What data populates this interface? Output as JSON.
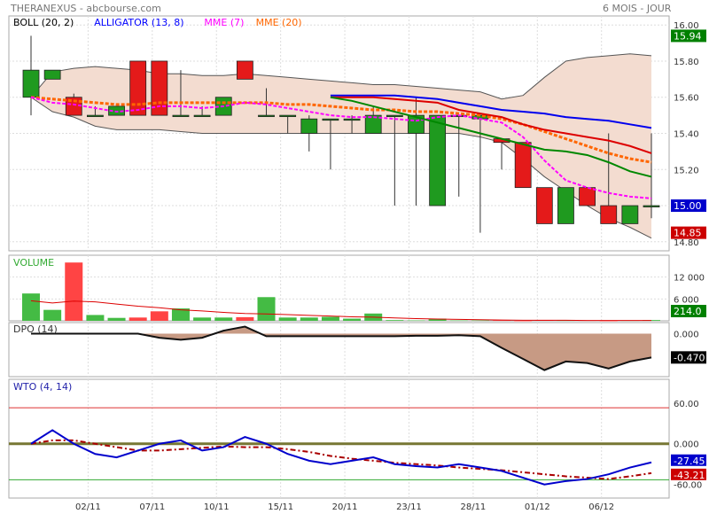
{
  "header": {
    "title": "THERANEXUS - abcbourse.com",
    "period": "6 MOIS - JOUR"
  },
  "panels": {
    "price": {
      "legend": [
        {
          "label": "BOLL (20, 2)",
          "color": "#000000"
        },
        {
          "label": "ALLIGATOR (13, 8)",
          "color": "#0000ff"
        },
        {
          "label": "MME (7)",
          "color": "#ff00ff"
        },
        {
          "label": "MME (20)",
          "color": "#ff6600"
        }
      ],
      "axis": [
        "16.00",
        "15.80",
        "15.60",
        "15.40",
        "15.20",
        "15.00",
        "14.80"
      ],
      "badges": [
        {
          "text": "15.94",
          "value": 15.94,
          "color": "#008000"
        },
        {
          "text": "15.00",
          "value": 15.0,
          "color": "#0000cc"
        },
        {
          "text": "14.85",
          "value": 14.85,
          "color": "#cc0000"
        }
      ]
    },
    "volume": {
      "label": "VOLUME",
      "axis": [
        "12 000",
        "6 000"
      ],
      "badge": "214.0",
      "badge_color": "#008000"
    },
    "dpo": {
      "label": "DPO (14)",
      "axis": [
        "0.000"
      ],
      "badge": "-0.470",
      "badge_color": "#000000"
    },
    "wto": {
      "label": "WTO (4, 14)",
      "axis": [
        "60.00",
        "0.000",
        "-60.00"
      ],
      "badges": [
        {
          "text": "-27.45",
          "value": -27.45,
          "color": "#0000cc"
        },
        {
          "text": "-43.21",
          "value": -43.21,
          "color": "#cc0000"
        }
      ]
    }
  },
  "chart_data": {
    "type": "candlestick",
    "x_labels": [
      "02/11",
      "07/11",
      "10/11",
      "15/11",
      "20/11",
      "23/11",
      "28/11",
      "01/12",
      "06/12"
    ],
    "x_label_index": [
      3,
      6,
      9,
      12,
      15,
      18,
      21,
      24,
      27
    ],
    "candles": [
      {
        "o": 15.6,
        "h": 15.94,
        "l": 15.5,
        "c": 15.75
      },
      {
        "o": 15.7,
        "h": 15.75,
        "l": 15.7,
        "c": 15.75
      },
      {
        "o": 15.6,
        "h": 15.62,
        "l": 15.5,
        "c": 15.5
      },
      {
        "o": 15.5,
        "h": 15.55,
        "l": 15.5,
        "c": 15.5
      },
      {
        "o": 15.5,
        "h": 15.55,
        "l": 15.5,
        "c": 15.55
      },
      {
        "o": 15.8,
        "h": 15.8,
        "l": 15.5,
        "c": 15.5
      },
      {
        "o": 15.8,
        "h": 15.8,
        "l": 15.5,
        "c": 15.5
      },
      {
        "o": 15.5,
        "h": 15.75,
        "l": 15.5,
        "c": 15.5
      },
      {
        "o": 15.5,
        "h": 15.55,
        "l": 15.5,
        "c": 15.5
      },
      {
        "o": 15.5,
        "h": 15.6,
        "l": 15.5,
        "c": 15.6
      },
      {
        "o": 15.8,
        "h": 15.8,
        "l": 15.7,
        "c": 15.7
      },
      {
        "o": 15.5,
        "h": 15.65,
        "l": 15.5,
        "c": 15.5
      },
      {
        "o": 15.5,
        "h": 15.5,
        "l": 15.4,
        "c": 15.5
      },
      {
        "o": 15.4,
        "h": 15.5,
        "l": 15.3,
        "c": 15.48
      },
      {
        "o": 15.48,
        "h": 15.48,
        "l": 15.2,
        "c": 15.48
      },
      {
        "o": 15.48,
        "h": 15.5,
        "l": 15.4,
        "c": 15.48
      },
      {
        "o": 15.4,
        "h": 15.55,
        "l": 15.4,
        "c": 15.5
      },
      {
        "o": 15.5,
        "h": 15.5,
        "l": 15.0,
        "c": 15.5
      },
      {
        "o": 15.4,
        "h": 15.6,
        "l": 15.0,
        "c": 15.5
      },
      {
        "o": 15.0,
        "h": 15.5,
        "l": 15.0,
        "c": 15.5
      },
      {
        "o": 15.5,
        "h": 15.5,
        "l": 15.05,
        "c": 15.5
      },
      {
        "o": 15.48,
        "h": 15.5,
        "l": 14.85,
        "c": 15.5
      },
      {
        "o": 15.37,
        "h": 15.37,
        "l": 15.2,
        "c": 15.35
      },
      {
        "o": 15.35,
        "h": 15.35,
        "l": 15.1,
        "c": 15.1
      },
      {
        "o": 15.1,
        "h": 15.1,
        "l": 14.9,
        "c": 14.9
      },
      {
        "o": 14.9,
        "h": 15.1,
        "l": 14.9,
        "c": 15.1
      },
      {
        "o": 15.1,
        "h": 15.1,
        "l": 15.0,
        "c": 15.0
      },
      {
        "o": 15.0,
        "h": 15.4,
        "l": 14.9,
        "c": 14.9
      },
      {
        "o": 14.9,
        "h": 15.0,
        "l": 14.9,
        "c": 15.0
      },
      {
        "o": 15.0,
        "h": 15.4,
        "l": 14.93,
        "c": 15.0
      }
    ],
    "boll_upper": [
      15.6,
      15.74,
      15.76,
      15.77,
      15.76,
      15.75,
      15.73,
      15.73,
      15.72,
      15.72,
      15.73,
      15.72,
      15.71,
      15.7,
      15.69,
      15.68,
      15.67,
      15.67,
      15.66,
      15.65,
      15.64,
      15.63,
      15.59,
      15.61,
      15.71,
      15.8,
      15.82,
      15.83,
      15.84,
      15.83
    ],
    "boll_lower": [
      15.6,
      15.52,
      15.49,
      15.44,
      15.42,
      15.42,
      15.42,
      15.41,
      15.4,
      15.4,
      15.4,
      15.4,
      15.4,
      15.4,
      15.4,
      15.4,
      15.4,
      15.4,
      15.4,
      15.4,
      15.4,
      15.38,
      15.35,
      15.26,
      15.16,
      15.08,
      15.0,
      14.93,
      14.88,
      14.82
    ],
    "alligator_blue": [
      null,
      null,
      null,
      null,
      null,
      null,
      null,
      null,
      null,
      null,
      null,
      null,
      null,
      null,
      15.61,
      15.61,
      15.61,
      15.61,
      15.6,
      15.59,
      15.57,
      15.55,
      15.53,
      15.52,
      15.51,
      15.49,
      15.48,
      15.47,
      15.45,
      15.43
    ],
    "alligator_red": [
      null,
      null,
      null,
      null,
      null,
      null,
      null,
      null,
      null,
      null,
      null,
      null,
      null,
      null,
      15.6,
      15.6,
      15.6,
      15.59,
      15.58,
      15.57,
      15.53,
      15.51,
      15.49,
      15.45,
      15.42,
      15.4,
      15.38,
      15.36,
      15.33,
      15.29
    ],
    "alligator_green": [
      null,
      null,
      null,
      null,
      null,
      null,
      null,
      null,
      null,
      null,
      null,
      null,
      null,
      null,
      15.6,
      15.58,
      15.55,
      15.52,
      15.49,
      15.46,
      15.43,
      15.4,
      15.37,
      15.34,
      15.31,
      15.3,
      15.28,
      15.24,
      15.19,
      15.16
    ],
    "mme7": [
      15.6,
      15.57,
      15.56,
      15.54,
      15.52,
      15.53,
      15.55,
      15.55,
      15.54,
      15.55,
      15.57,
      15.56,
      15.54,
      15.52,
      15.5,
      15.49,
      15.49,
      15.48,
      15.47,
      15.49,
      15.5,
      15.48,
      15.46,
      15.38,
      15.25,
      15.14,
      15.1,
      15.07,
      15.05,
      15.04
    ],
    "mme20": [
      15.6,
      15.59,
      15.58,
      15.57,
      15.56,
      15.56,
      15.57,
      15.57,
      15.57,
      15.57,
      15.57,
      15.57,
      15.56,
      15.56,
      15.55,
      15.54,
      15.53,
      15.53,
      15.52,
      15.52,
      15.51,
      15.5,
      15.48,
      15.45,
      15.41,
      15.37,
      15.33,
      15.29,
      15.26,
      15.24
    ],
    "volume": [
      7500,
      3000,
      16000,
      1600,
      800,
      900,
      2600,
      3400,
      900,
      900,
      1000,
      6500,
      900,
      900,
      1100,
      600,
      2000,
      200,
      100,
      600,
      100,
      100,
      100,
      0,
      200,
      100,
      100,
      0,
      100,
      214
    ],
    "volume_ma": [
      5500,
      4900,
      5400,
      5200,
      4600,
      4000,
      3600,
      3000,
      2700,
      2300,
      2000,
      1900,
      1700,
      1500,
      1300,
      1100,
      1000,
      800,
      600,
      500,
      400,
      300,
      200,
      150,
      150,
      150,
      100,
      100,
      100,
      100
    ],
    "dpo": [
      0.0,
      0.0,
      0.0,
      0.0,
      0.0,
      0.0,
      -0.08,
      -0.12,
      -0.08,
      0.06,
      0.14,
      -0.05,
      -0.05,
      -0.05,
      -0.05,
      -0.05,
      -0.05,
      -0.05,
      -0.04,
      -0.04,
      -0.03,
      -0.05,
      -0.28,
      -0.5,
      -0.72,
      -0.55,
      -0.58,
      -0.69,
      -0.55,
      -0.47
    ],
    "wto_blue": [
      0,
      20,
      0,
      -15,
      -20,
      -10,
      0,
      5,
      -10,
      -5,
      10,
      0,
      -15,
      -25,
      -30,
      -25,
      -20,
      -30,
      -33,
      -35,
      -30,
      -35,
      -40,
      -50,
      -60,
      -55,
      -52,
      -45,
      -35,
      -27.45
    ],
    "wto_red": [
      0,
      5,
      5,
      0,
      -5,
      -10,
      -10,
      -8,
      -6,
      -4,
      -5,
      -5,
      -8,
      -12,
      -18,
      -22,
      -25,
      -28,
      -30,
      -32,
      -35,
      -37,
      -39,
      -42,
      -45,
      -48,
      -50,
      -52,
      -48,
      -43.21
    ],
    "wto_levels": {
      "upper": 53,
      "zero": 0,
      "lower": -53
    }
  }
}
